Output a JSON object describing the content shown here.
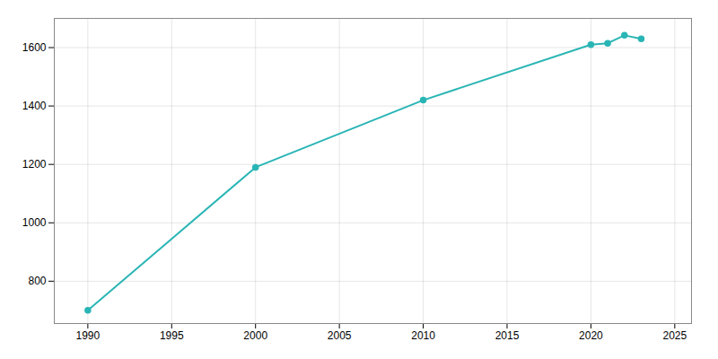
{
  "chart_data": {
    "type": "line",
    "x": [
      1990,
      2000,
      2010,
      2020,
      2021,
      2022,
      2023
    ],
    "values": [
      700,
      1190,
      1420,
      1610,
      1615,
      1642,
      1630
    ],
    "color": "#2ab5b5",
    "marker": "circle",
    "xlim": [
      1988,
      2026
    ],
    "ylim": [
      655,
      1700
    ],
    "xticks": [
      1990,
      1995,
      2000,
      2005,
      2010,
      2015,
      2020,
      2025
    ],
    "yticks": [
      800,
      1000,
      1200,
      1400,
      1600
    ],
    "grid": true
  }
}
